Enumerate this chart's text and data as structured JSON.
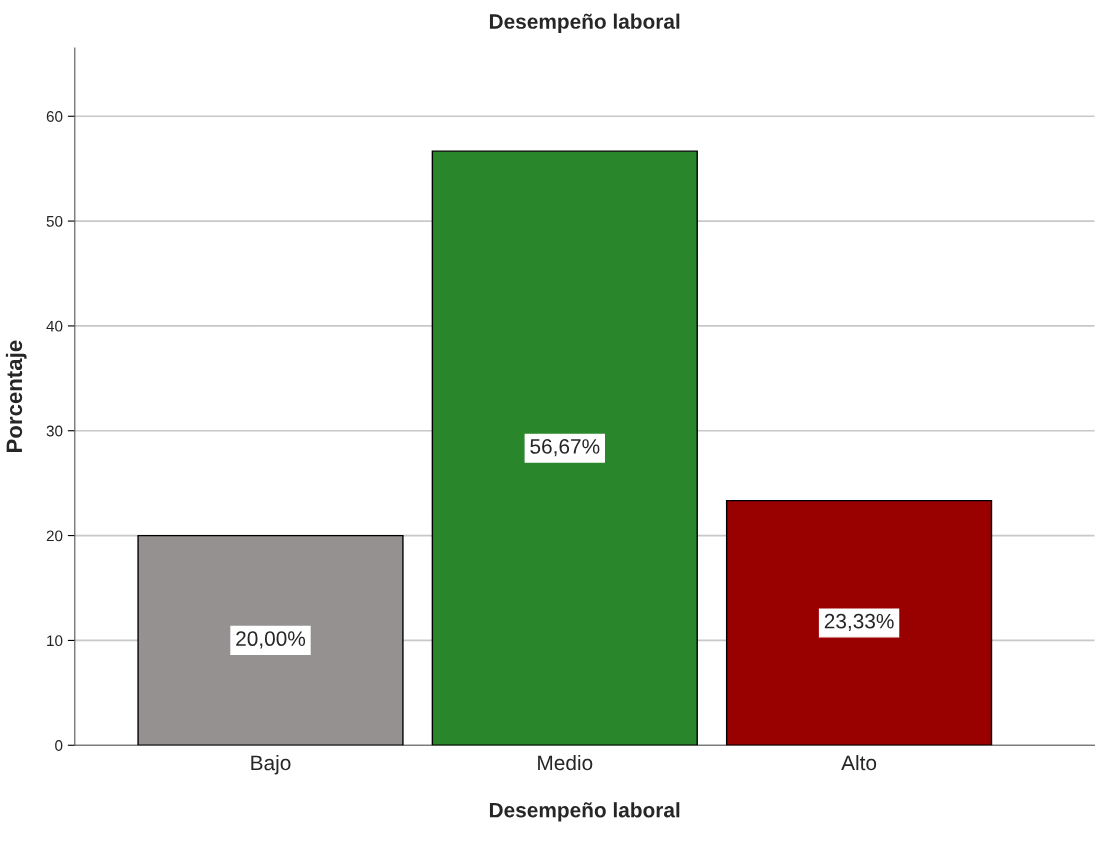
{
  "chart_data": {
    "type": "bar",
    "title": "Desempeño laboral",
    "xlabel": "Desempeño laboral",
    "ylabel": "Porcentaje",
    "categories": [
      "Bajo",
      "Medio",
      "Alto"
    ],
    "values": [
      20.0,
      56.67,
      23.33
    ],
    "colors": [
      "#959190",
      "#2a862a",
      "#990000"
    ],
    "value_labels": [
      "20,00%",
      "56,67%",
      "23,33%"
    ],
    "ylim": [
      0,
      66.5
    ],
    "yticks": [
      0,
      10,
      20,
      30,
      40,
      50,
      60
    ],
    "grid": "y",
    "legend": false
  }
}
